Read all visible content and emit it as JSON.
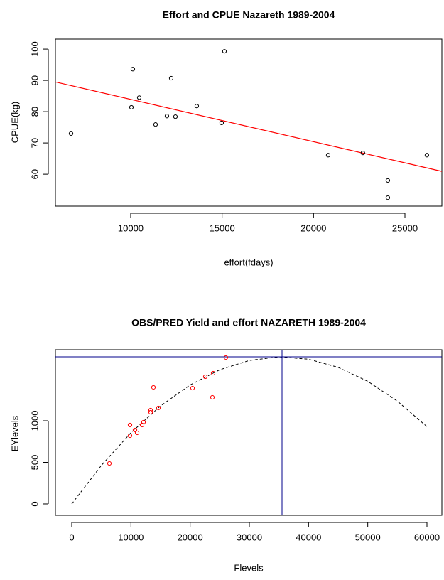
{
  "chart_data": [
    {
      "type": "scatter",
      "title": "Effort and CPUE Nazareth 1989-2004",
      "x_label": "effort(fdays)",
      "y_label": "CPUE(kg)",
      "x": [
        6737,
        10039,
        10117,
        10466,
        11360,
        11981,
        12214,
        12447,
        13613,
        15128,
        14973,
        20800,
        22700,
        24064,
        24064,
        26200
      ],
      "y": [
        73.0,
        81.4,
        93.6,
        84.5,
        75.9,
        78.6,
        90.7,
        78.4,
        81.8,
        99.3,
        76.4,
        66.1,
        66.8,
        58.0,
        52.5,
        66.1
      ],
      "color": "#000000",
      "fit": {
        "intercept": 97.46,
        "slope": -0.001353,
        "color": "#ff0000"
      },
      "xlim": [
        5882,
        27020
      ],
      "ylim": [
        49.8,
        103.2
      ],
      "xticks": [
        10000,
        15000,
        20000,
        25000
      ],
      "yticks": [
        60,
        70,
        80,
        90,
        100
      ]
    },
    {
      "type": "scatter",
      "title": "OBS/PRED Yield and effort NAZARETH 1989-2004",
      "x_label": "Flevels",
      "y_label": "EYlevels",
      "x": [
        6360,
        9840,
        9840,
        10680,
        11040,
        11880,
        12120,
        13320,
        13320,
        13800,
        14640,
        20400,
        22560,
        23880,
        23760,
        26040
      ],
      "y": [
        487,
        949,
        820,
        889,
        855,
        949,
        983,
        1103,
        1128,
        1402,
        1154,
        1393,
        1530,
        1573,
        1282,
        1761
      ],
      "color": "#ff0000",
      "curve": {
        "x": [
          0,
          5000,
          10000,
          15000,
          20000,
          25000,
          30000,
          35000,
          40000,
          45000,
          50000,
          55000,
          60000
        ],
        "y": [
          0,
          463,
          856,
          1179,
          1431,
          1614,
          1726,
          1769,
          1741,
          1643,
          1475,
          1237,
          929
        ],
        "color": "#000000"
      },
      "hline": 1769,
      "vline": 35520,
      "reference_color": "#00008b",
      "xlim": [
        -2760,
        62520
      ],
      "ylim": [
        -137,
        1855
      ],
      "xticks": [
        0,
        10000,
        20000,
        30000,
        40000,
        50000,
        60000
      ],
      "yticks": [
        0,
        500,
        1000
      ]
    }
  ]
}
